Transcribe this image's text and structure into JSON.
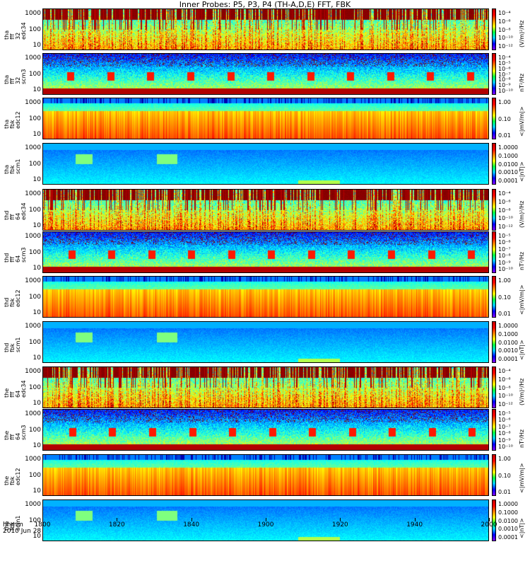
{
  "title": "Inner Probes: P5, P3, P4 (TH-A,D,E) FFT, FBK",
  "chart_data": {
    "type": "heatmap",
    "x_axis": {
      "label": "hhmm",
      "date": "2010 Jun 28",
      "ticks": [
        "1800",
        "1820",
        "1840",
        "1900",
        "1920",
        "1940",
        "2000"
      ],
      "range_minutes": [
        0,
        120
      ]
    },
    "panels": [
      {
        "label": [
          "tha",
          "fff",
          "32",
          "edc34"
        ],
        "yticks": [
          "1000",
          "100",
          "10"
        ],
        "yscale": "log",
        "ylim": [
          5,
          2000
        ],
        "colorbar_ticks": [
          "10⁻⁴",
          "10⁻⁶",
          "10⁻⁸",
          "10⁻¹⁰",
          "10⁻¹²"
        ],
        "colorbar_unit": "(V/m)²/Hz",
        "clim_log10": [
          -12,
          -4
        ],
        "kind": "fff_e"
      },
      {
        "label": [
          "tha",
          "fff",
          "32",
          "scm3"
        ],
        "yticks": [
          "1000",
          "100",
          "10"
        ],
        "yscale": "log",
        "ylim": [
          5,
          2000
        ],
        "colorbar_ticks": [
          "10⁻⁴",
          "10⁻⁵",
          "10⁻⁶",
          "10⁻⁷",
          "10⁻⁸",
          "10⁻⁹",
          "10⁻¹⁰"
        ],
        "colorbar_unit": "nT²/Hz",
        "clim_log10": [
          -10,
          -4
        ],
        "kind": "fff_b"
      },
      {
        "label": [
          "tha",
          "fbk",
          "edc12"
        ],
        "yticks": [
          "1000",
          "100",
          "10"
        ],
        "yscale": "log",
        "ylim": [
          5,
          2000
        ],
        "colorbar_ticks": [
          "1.00",
          "0.10",
          "0.01"
        ],
        "colorbar_unit": "<|mV/m|>",
        "clim_log10": [
          -2,
          0
        ],
        "kind": "fbk_e"
      },
      {
        "label": [
          "tha",
          "fbk",
          "scm1"
        ],
        "yticks": [
          "1000",
          "100",
          "10"
        ],
        "yscale": "log",
        "ylim": [
          5,
          2000
        ],
        "colorbar_ticks": [
          "1.0000",
          "0.1000",
          "0.0100",
          "0.0010",
          "0.0001"
        ],
        "colorbar_unit": "<|nT|>",
        "clim_log10": [
          -4,
          0
        ],
        "kind": "fbk_b"
      },
      {
        "label": [
          "thd",
          "fff",
          "64",
          "edc34"
        ],
        "yticks": [
          "1000",
          "100",
          "10"
        ],
        "yscale": "log",
        "ylim": [
          5,
          2000
        ],
        "colorbar_ticks": [
          "10⁻⁴",
          "10⁻⁶",
          "10⁻⁸",
          "10⁻¹⁰",
          "10⁻¹²"
        ],
        "colorbar_unit": "(V/m)²/Hz",
        "clim_log10": [
          -12,
          -4
        ],
        "kind": "fff_e"
      },
      {
        "label": [
          "thd",
          "fff",
          "64",
          "scm3"
        ],
        "yticks": [
          "1000",
          "100",
          "10"
        ],
        "yscale": "log",
        "ylim": [
          5,
          2000
        ],
        "colorbar_ticks": [
          "10⁻⁵",
          "10⁻⁶",
          "10⁻⁷",
          "10⁻⁸",
          "10⁻⁹",
          "10⁻¹⁰"
        ],
        "colorbar_unit": "nT²/Hz",
        "clim_log10": [
          -10,
          -5
        ],
        "kind": "fff_b"
      },
      {
        "label": [
          "thd",
          "fbk",
          "edc12"
        ],
        "yticks": [
          "1000",
          "100",
          "10"
        ],
        "yscale": "log",
        "ylim": [
          5,
          2000
        ],
        "colorbar_ticks": [
          "1.00",
          "0.10",
          "0.01"
        ],
        "colorbar_unit": "<|mV/m|>",
        "clim_log10": [
          -2,
          0
        ],
        "kind": "fbk_e"
      },
      {
        "label": [
          "thd",
          "fbk",
          "scm1"
        ],
        "yticks": [
          "1000",
          "100",
          "10"
        ],
        "yscale": "log",
        "ylim": [
          5,
          2000
        ],
        "colorbar_ticks": [
          "1.0000",
          "0.1000",
          "0.0100",
          "0.0010",
          "0.0001"
        ],
        "colorbar_unit": "<|nT|>",
        "clim_log10": [
          -4,
          0
        ],
        "kind": "fbk_b"
      },
      {
        "label": [
          "the",
          "fff",
          "64",
          "edc34"
        ],
        "yticks": [
          "1000",
          "100",
          "10"
        ],
        "yscale": "log",
        "ylim": [
          5,
          2000
        ],
        "colorbar_ticks": [
          "10⁻⁴",
          "10⁻⁶",
          "10⁻⁸",
          "10⁻¹⁰",
          "10⁻¹²"
        ],
        "colorbar_unit": "(V/m)²/Hz",
        "clim_log10": [
          -12,
          -4
        ],
        "kind": "fff_e"
      },
      {
        "label": [
          "the",
          "fff",
          "64",
          "scm3"
        ],
        "yticks": [
          "1000",
          "100",
          "10"
        ],
        "yscale": "log",
        "ylim": [
          5,
          2000
        ],
        "colorbar_ticks": [
          "10⁻⁵",
          "10⁻⁶",
          "10⁻⁷",
          "10⁻⁸",
          "10⁻⁹",
          "10⁻¹⁰"
        ],
        "colorbar_unit": "nT²/Hz",
        "clim_log10": [
          -10,
          -5
        ],
        "kind": "fff_b"
      },
      {
        "label": [
          "the",
          "fbk",
          "edc12"
        ],
        "yticks": [
          "1000",
          "100",
          "10"
        ],
        "yscale": "log",
        "ylim": [
          5,
          2000
        ],
        "colorbar_ticks": [
          "1.00",
          "0.10",
          "0.01"
        ],
        "colorbar_unit": "<|mV/m|>",
        "clim_log10": [
          -2,
          0
        ],
        "kind": "fbk_e"
      },
      {
        "label": [
          "the",
          "fbk",
          "scm1"
        ],
        "yticks": [
          "1000",
          "100",
          "10"
        ],
        "yscale": "log",
        "ylim": [
          5,
          2000
        ],
        "colorbar_ticks": [
          "1.0000",
          "0.1000",
          "0.0100",
          "0.0010",
          "0.0001"
        ],
        "colorbar_unit": "<|nT|>",
        "clim_log10": [
          -4,
          0
        ],
        "kind": "fbk_b"
      }
    ]
  }
}
